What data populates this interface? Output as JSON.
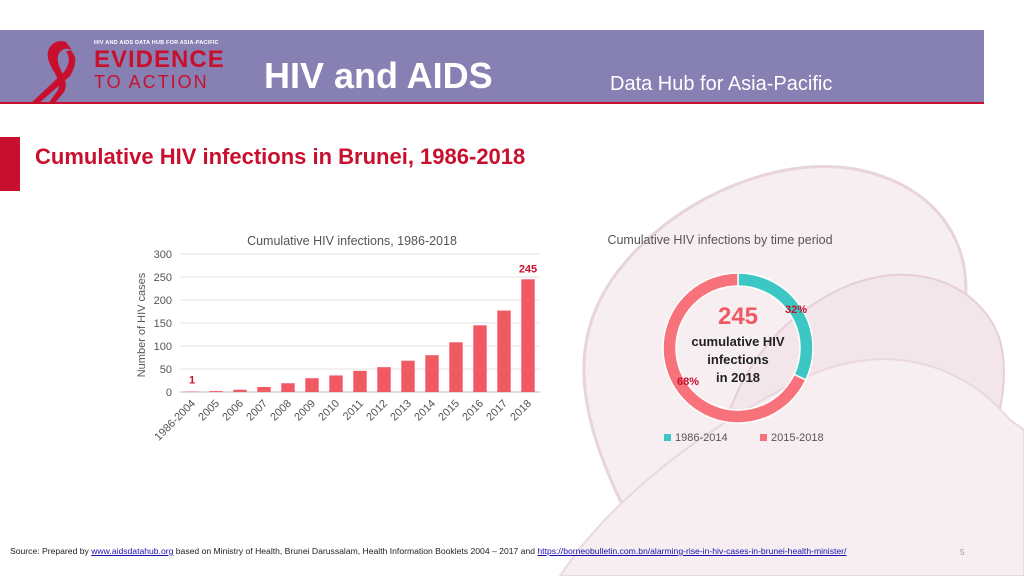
{
  "header": {
    "logo_tagline": "HIV AND AIDS DATA HUB FOR ASIA-PACIFIC",
    "logo_line1": "EVIDENCE",
    "logo_line2": "TO ACTION",
    "title": "HIV and AIDS",
    "subtitle": "Data Hub for Asia-Pacific"
  },
  "page_title": "Cumulative HIV infections in Brunei, 1986-2018",
  "colors": {
    "accent": "#c8102e",
    "header_bg": "#8781b3",
    "bar": "#f05a63",
    "teal": "#3cc7c4",
    "pink": "#f7727a"
  },
  "chart_data": [
    {
      "type": "bar",
      "title": "Cumulative HIV infections, 1986-2018",
      "xlabel": "",
      "ylabel": "Number of HIV cases",
      "ylim": [
        0,
        300
      ],
      "yticks": [
        0,
        50,
        100,
        150,
        200,
        250,
        300
      ],
      "categories": [
        "1986-2004",
        "2005",
        "2006",
        "2007",
        "2008",
        "2009",
        "2010",
        "2011",
        "2012",
        "2013",
        "2014",
        "2015",
        "2016",
        "2017",
        "2018"
      ],
      "values": [
        1,
        2,
        5,
        11,
        19,
        30,
        36,
        46,
        54,
        68,
        80,
        108,
        145,
        177,
        245
      ],
      "data_labels": [
        {
          "category": "1986-2004",
          "text": "1"
        },
        {
          "category": "2018",
          "text": "245"
        }
      ],
      "grid": true
    },
    {
      "type": "pie",
      "title": "Cumulative HIV infections by time period",
      "categories": [
        "1986-2014",
        "2015-2018"
      ],
      "values": [
        32,
        68
      ],
      "value_labels": [
        "32%",
        "68%"
      ],
      "center_value": "245",
      "center_text": [
        "cumulative HIV",
        "infections",
        "in 2018"
      ],
      "legend": "bottom"
    }
  ],
  "source": {
    "prefix": "Source: Prepared by ",
    "link1": "www.aidsdatahub.org",
    "middle": " based on Ministry of Health, Brunei Darussalam, Health Information Booklets 2004 – 2017 and ",
    "link2": "https://borneobulletin.com.bn/alarming-rise-in-hiv-cases-in-brunei-health-minister/"
  },
  "page_number": "5"
}
